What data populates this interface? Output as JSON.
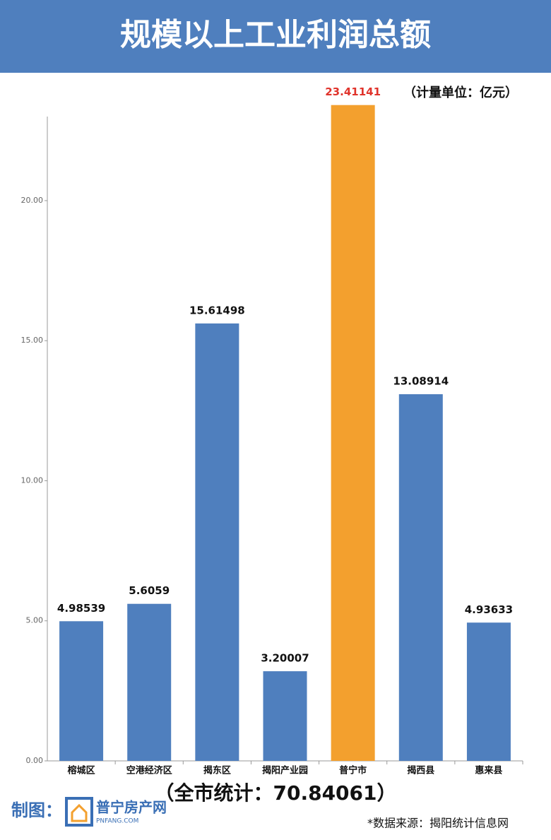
{
  "chart_data": {
    "type": "bar",
    "title": "规模以上工业利润总额",
    "unit_note": "（计量单位：亿元）",
    "categories": [
      "榕城区",
      "空港经济区",
      "揭东区",
      "揭阳产业园",
      "普宁市",
      "揭西县",
      "惠来县"
    ],
    "values": [
      4.98539,
      5.6059,
      15.61498,
      3.20007,
      23.41141,
      13.08914,
      4.93633
    ],
    "colors": [
      "#4f7fbe",
      "#4f7fbe",
      "#4f7fbe",
      "#4f7fbe",
      "#f3a02e",
      "#4f7fbe",
      "#4f7fbe"
    ],
    "value_label_colors": [
      "#111111",
      "#111111",
      "#111111",
      "#111111",
      "#e0332b",
      "#111111",
      "#111111"
    ],
    "ylim": [
      0,
      23
    ],
    "yticks": [
      {
        "value": 0,
        "label": "0.00"
      },
      {
        "value": 5,
        "label": "5.00"
      },
      {
        "value": 10,
        "label": "10.00"
      },
      {
        "value": 15,
        "label": "15.00"
      },
      {
        "value": 20,
        "label": "20.00"
      }
    ],
    "grid": false,
    "total_note": "（全市统计：70.84061）"
  },
  "footer": {
    "maker_label": "制图：",
    "logo_text": "普宁房产网",
    "logo_sub": "PNFANG.COM",
    "source": "*数据来源：揭阳统计信息网"
  }
}
